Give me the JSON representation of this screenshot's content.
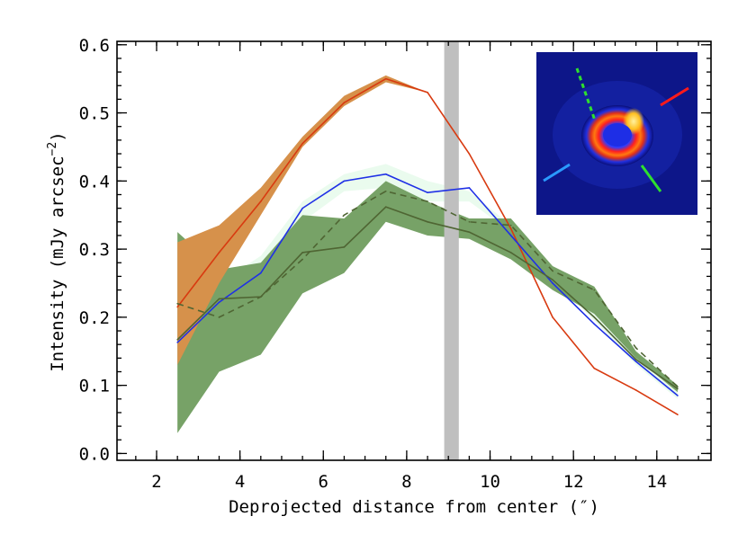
{
  "chart_data": {
    "type": "line",
    "title": "",
    "xlabel": "Deprojected distance from center (″)",
    "ylabel": "Intensity (mJy arcsec",
    "ylabel_exponent": "−2",
    "ylabel_close": ")",
    "xlim": [
      1.05,
      15.3
    ],
    "ylim": [
      -0.01,
      0.605
    ],
    "xticks": [
      2,
      4,
      6,
      8,
      10,
      12,
      14
    ],
    "xtick_labels": [
      "2",
      "4",
      "6",
      "8",
      "10",
      "12",
      "14"
    ],
    "yticks": [
      0.0,
      0.1,
      0.2,
      0.3,
      0.4,
      0.5,
      0.6
    ],
    "ytick_labels": [
      "0.0",
      "0.1",
      "0.2",
      "0.3",
      "0.4",
      "0.5",
      "0.6"
    ],
    "x_minor_step": 0.5,
    "y_minor_step": 0.02,
    "vband": {
      "x0": 8.9,
      "x1": 9.25,
      "color": "#bfbfbf"
    },
    "bands": [
      {
        "name": "blue-profile-uncertainty",
        "color": "#eafbee",
        "x": [
          2.5,
          3.5,
          4.5,
          5.5,
          6.5,
          7.5,
          8.5,
          9.5,
          10.5,
          11.5,
          12.5,
          13.5,
          14.5
        ],
        "upper": [
          0.26,
          0.25,
          0.29,
          0.37,
          0.41,
          0.425,
          0.4,
          0.385,
          0.335,
          0.265,
          0.205,
          0.15,
          0.09
        ],
        "lower": [
          0.07,
          0.18,
          0.22,
          0.34,
          0.385,
          0.39,
          0.37,
          0.37,
          0.325,
          0.255,
          0.195,
          0.13,
          0.08
        ]
      },
      {
        "name": "green-profile-uncertainty",
        "color": "#77a267",
        "x": [
          2.5,
          3.5,
          4.5,
          5.5,
          6.5,
          7.5,
          8.5,
          9.5,
          10.5,
          11.5,
          12.5,
          13.5,
          14.5
        ],
        "upper": [
          0.325,
          0.27,
          0.28,
          0.35,
          0.345,
          0.4,
          0.37,
          0.345,
          0.345,
          0.275,
          0.245,
          0.15,
          0.1
        ],
        "lower": [
          0.03,
          0.12,
          0.145,
          0.235,
          0.265,
          0.34,
          0.32,
          0.315,
          0.285,
          0.24,
          0.205,
          0.14,
          0.09
        ]
      },
      {
        "name": "red-profile-uncertainty",
        "color": "#d6914b",
        "x": [
          2.5,
          3.5,
          4.5,
          5.5,
          6.5,
          7.5,
          8.5
        ],
        "upper": [
          0.31,
          0.335,
          0.39,
          0.465,
          0.525,
          0.555,
          0.53
        ],
        "lower": [
          0.13,
          0.25,
          0.35,
          0.45,
          0.51,
          0.545,
          0.53
        ]
      }
    ],
    "series": [
      {
        "name": "red-profile",
        "color": "#d83a10",
        "dashed": false,
        "x": [
          2.5,
          3.5,
          4.5,
          5.5,
          6.5,
          7.5,
          8.5,
          9.5,
          10.5,
          11.5,
          12.5,
          13.5,
          14.5
        ],
        "values": [
          0.215,
          0.295,
          0.37,
          0.455,
          0.515,
          0.55,
          0.53,
          0.44,
          0.33,
          0.2,
          0.125,
          0.093,
          0.057
        ]
      },
      {
        "name": "blue-profile",
        "color": "#1f30e6",
        "dashed": false,
        "x": [
          2.5,
          3.5,
          4.5,
          5.5,
          6.5,
          7.5,
          8.5,
          9.5,
          10.5,
          11.5,
          12.5,
          13.5,
          14.5
        ],
        "values": [
          0.163,
          0.222,
          0.265,
          0.36,
          0.4,
          0.41,
          0.383,
          0.39,
          0.32,
          0.25,
          0.19,
          0.135,
          0.085
        ]
      },
      {
        "name": "green-profile",
        "color": "#4f6533",
        "dashed": false,
        "x": [
          2.5,
          3.5,
          4.5,
          5.5,
          6.5,
          7.5,
          8.5,
          9.5,
          10.5,
          11.5,
          12.5,
          13.5,
          14.5
        ],
        "values": [
          0.167,
          0.227,
          0.23,
          0.295,
          0.303,
          0.362,
          0.34,
          0.325,
          0.295,
          0.255,
          0.2,
          0.138,
          0.095
        ]
      },
      {
        "name": "green-dashed-profile",
        "color": "#4f6533",
        "dashed": true,
        "x": [
          2.5,
          3.5,
          4.5,
          5.5,
          6.5,
          7.5,
          8.5,
          9.5,
          10.5,
          11.5,
          12.5,
          13.5,
          14.5
        ],
        "values": [
          0.22,
          0.2,
          0.23,
          0.285,
          0.35,
          0.385,
          0.37,
          0.34,
          0.335,
          0.268,
          0.24,
          0.155,
          0.098
        ]
      }
    ],
    "inset": {
      "description": "ring-image",
      "background": "#0a0f78",
      "markers": [
        {
          "name": "red-marker",
          "color": "#ff1a1a",
          "dashed": false
        },
        {
          "name": "blue-marker",
          "color": "#2a9aff",
          "dashed": false
        },
        {
          "name": "green-marker",
          "color": "#2ee02e",
          "dashed": false
        },
        {
          "name": "green-dashed-marker",
          "color": "#2ee02e",
          "dashed": true
        }
      ]
    }
  }
}
